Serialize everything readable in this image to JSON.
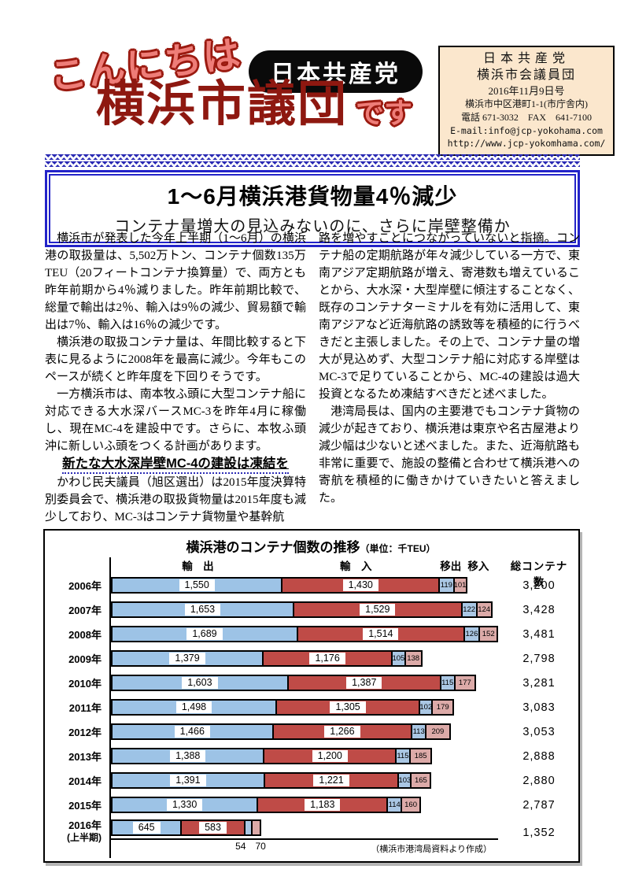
{
  "colors": {
    "accent_blue": "#2a2ab4",
    "title_dark_red": "#8e1810",
    "greeting_pink": "#ee7d78",
    "infobox_bg": "#fbe7cd"
  },
  "header": {
    "greeting": "こんにちは",
    "party_badge": "日本共産党",
    "group_title": "横浜市議団",
    "suffix": "です",
    "info_box": {
      "line1": "日本共産党",
      "line2": "横浜市会議員団",
      "line3": "2016年11月9日号",
      "line4": "横浜市中区港町1-1(市庁舎内)",
      "line5": "電話 671-3032　FAX　641-7100",
      "line6": "E-mail:info@jcp-yokohama.com",
      "line7": "http://www.jcp-yokomhama.com/"
    }
  },
  "headline": {
    "title": "1～6月横浜港貨物量4％減少",
    "subtitle": "コンテナ量増大の見込みないのに、さらに岸壁整備か"
  },
  "article": {
    "left": [
      "　横浜市が発表した今年上半期（1～6月）の横浜港の取扱量は、5,502万トン、コンテナ個数135万TEU（20フィートコンテナ換算量）で、両方とも昨年前期から4％減りました。昨年前期比較で、総量で輸出は2％、輸入は9％の減少、貿易額で輸出は7％、輸入は16％の減少です。",
      "　横浜港の取扱コンテナ量は、年間比較すると下表に見るように2008年を最高に減少。今年もこのペースが続くと昨年度を下回りそうです。",
      "　一方横浜市は、南本牧ふ頭に大型コンテナ船に対応できる大水深バースMC-3を昨年4月に稼働し、現在MC-4を建設中です。さらに、本牧ふ頭沖に新しいふ頭をつくる計画があります。"
    ],
    "subheading": "新たな大水深岸壁MC-4の建設は凍結を",
    "left_after": [
      "　かわじ民夫議員（旭区選出）は2015年度決算特別委員会で、横浜港の取扱貨物量は2015年度も減少しており、MC-3はコンテナ貨物量や基幹航"
    ],
    "right": [
      "路を増やすことにつながっていないと指摘。コンテナ船の定期航路が年々減少している一方で、東南アジア定期航路が増え、寄港数も増えていることから、大水深・大型岸壁に傾注することなく、既存のコンテナターミナルを有効に活用して、東南アジアなど近海航路の誘致等を積極的に行うべきだと主張しました。その上で、コンテナ量の増大が見込めず、大型コンテナ船に対応する岸壁はMC-3で足りていることから、MC-4の建設は過大投資となるため凍結すべきだと述べました。",
      "　港湾局長は、国内の主要港でもコンテナ貨物の減少が起きており、横浜港は東京や名古屋港より減少幅は少ないと述べました。また、近海航路も非常に重要で、施設の整備と合わせて横浜港への寄航を積極的に働きかけていきたいと答えました。"
    ]
  },
  "chart_data": {
    "type": "bar",
    "orientation": "horizontal-stacked",
    "title": "横浜港のコンテナ個数の推移",
    "unit": "（単位：千TEU）",
    "source": "（横浜市港湾局資料より作成）",
    "x_max": 3550,
    "columns": {
      "export": "輸　出",
      "import": "輸　入",
      "transfer_out": "移出",
      "transfer_in": "移入",
      "total": "総コンテナ数"
    },
    "series_colors": {
      "export": "#9dc3e6",
      "import": "#bf4b47",
      "transfer_out": "#aac7e4",
      "transfer_in": "#dcaaa8"
    },
    "rows": [
      {
        "year": "2006年",
        "export": 1550,
        "import": 1430,
        "out": 119,
        "in": 101,
        "total": "3,200"
      },
      {
        "year": "2007年",
        "export": 1653,
        "import": 1529,
        "out": 122,
        "in": 124,
        "total": "3,428"
      },
      {
        "year": "2008年",
        "export": 1689,
        "import": 1514,
        "out": 126,
        "in": 152,
        "total": "3,481"
      },
      {
        "year": "2009年",
        "export": 1379,
        "import": 1176,
        "out": 105,
        "in": 138,
        "total": "2,798"
      },
      {
        "year": "2010年",
        "export": 1603,
        "import": 1387,
        "out": 115,
        "in": 177,
        "total": "3,281"
      },
      {
        "year": "2011年",
        "export": 1498,
        "import": 1305,
        "out": 102,
        "in": 179,
        "total": "3,083"
      },
      {
        "year": "2012年",
        "export": 1466,
        "import": 1266,
        "out": 113,
        "in": 209,
        "total": "3,053"
      },
      {
        "year": "2013年",
        "export": 1388,
        "import": 1200,
        "out": 115,
        "in": 185,
        "total": "2,888"
      },
      {
        "year": "2014年",
        "export": 1391,
        "import": 1221,
        "out": 103,
        "in": 165,
        "total": "2,880"
      },
      {
        "year": "2015年",
        "export": 1330,
        "import": 1183,
        "out": 114,
        "in": 160,
        "total": "2,787"
      },
      {
        "year": "2016年",
        "sub": "(上半期)",
        "export": 645,
        "import": 583,
        "out": 54,
        "in": 70,
        "total": "1,352",
        "labels_below": true
      }
    ],
    "header_positions": {
      "export_pct": 22,
      "import_pct": 62,
      "out_pct": 86,
      "in_pct": 93
    }
  }
}
